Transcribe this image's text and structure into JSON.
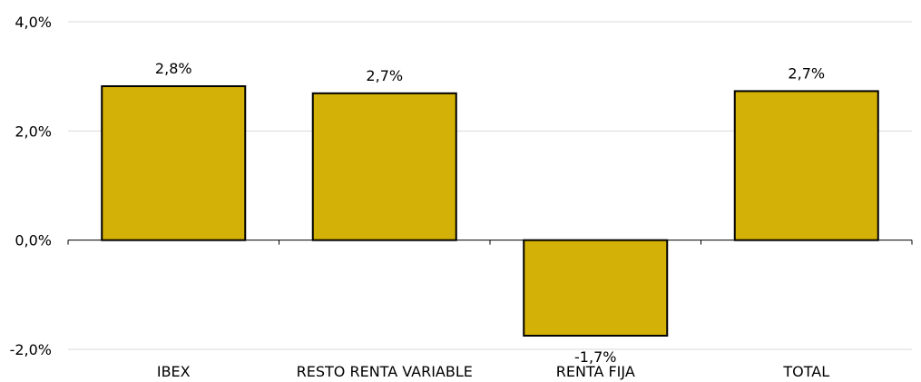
{
  "chart_data": {
    "type": "bar",
    "title": "",
    "xlabel": "",
    "ylabel": "",
    "categories": [
      "IBEX",
      "RESTO RENTA VARIABLE",
      "RENTA FIJA",
      "TOTAL"
    ],
    "values": [
      2.82,
      2.69,
      -1.75,
      2.73
    ],
    "data_labels": [
      "2,8%",
      "2,7%",
      "-1,7%",
      "2,7%"
    ],
    "ylim": [
      -2.0,
      4.0
    ],
    "yticks": [
      {
        "value": -2.0,
        "label": "-2,0%"
      },
      {
        "value": 0.0,
        "label": "0,0%"
      },
      {
        "value": 2.0,
        "label": "2,0%"
      },
      {
        "value": 4.0,
        "label": "4,0%"
      }
    ],
    "grid": true,
    "legend": "none",
    "bar_color": "#d4b106",
    "bar_outline_color": "#000000",
    "grid_color": "#d9d9d9"
  }
}
